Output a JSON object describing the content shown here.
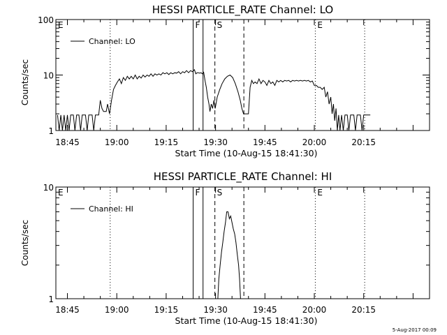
{
  "footer_stamp": "5-Aug-2017 00:09",
  "chart_data": [
    {
      "type": "line",
      "title": "HESSI PARTICLE_RATE Channel: LO",
      "xlabel": "Start Time (10-Aug-15 18:41:30)",
      "ylabel": "Counts/sec",
      "yscale": "log",
      "xlim_minutes": [
        1121.5,
        1235.0
      ],
      "ylim": [
        1,
        100
      ],
      "x_ticks": [
        {
          "t": 1125,
          "label": "18:45"
        },
        {
          "t": 1140,
          "label": "19:00"
        },
        {
          "t": 1155,
          "label": "19:15"
        },
        {
          "t": 1170,
          "label": "19:30"
        },
        {
          "t": 1185,
          "label": "19:45"
        },
        {
          "t": 1200,
          "label": "20:00"
        },
        {
          "t": 1215,
          "label": "20:15"
        }
      ],
      "y_ticks": [
        {
          "v": 1,
          "label": "1"
        },
        {
          "v": 10,
          "label": "10"
        },
        {
          "v": 100,
          "label": "100"
        }
      ],
      "legend": {
        "label": "Channel: LO",
        "placement": "top-left"
      },
      "markers": [
        {
          "label": "E",
          "t": 1121.5,
          "style": "none"
        },
        {
          "label": "",
          "t": 1138.0,
          "style": "dotted"
        },
        {
          "label": "F",
          "t": 1163.2,
          "style": "solid"
        },
        {
          "label": "",
          "t": 1166.2,
          "style": "solid"
        },
        {
          "label": "S",
          "t": 1169.8,
          "style": "dashed"
        },
        {
          "label": "",
          "t": 1178.6,
          "style": "dashed"
        },
        {
          "label": "E",
          "t": 1200.3,
          "style": "dotted"
        },
        {
          "label": "",
          "t": 1215.3,
          "style": "dotted"
        }
      ],
      "series": [
        {
          "name": "Channel: LO",
          "points": [
            [
              1122.0,
              1.9
            ],
            [
              1122.5,
              1
            ],
            [
              1123.0,
              1.9
            ],
            [
              1123.5,
              1
            ],
            [
              1124.0,
              1.9
            ],
            [
              1124.5,
              1
            ],
            [
              1125.0,
              1.9
            ],
            [
              1125.5,
              1
            ],
            [
              1126.0,
              1.9
            ],
            [
              1126.8,
              1.9
            ],
            [
              1127.3,
              1
            ],
            [
              1127.8,
              1.9
            ],
            [
              1128.5,
              1.9
            ],
            [
              1129.0,
              1
            ],
            [
              1129.5,
              1.9
            ],
            [
              1130.5,
              1.9
            ],
            [
              1131.0,
              1
            ],
            [
              1131.5,
              1.9
            ],
            [
              1132.5,
              1.9
            ],
            [
              1133.0,
              1
            ],
            [
              1133.5,
              1.9
            ],
            [
              1134.5,
              1.9
            ],
            [
              1135.0,
              3.5
            ],
            [
              1135.5,
              2.5
            ],
            [
              1136.0,
              2.2
            ],
            [
              1136.8,
              2.2
            ],
            [
              1137.2,
              3.0
            ],
            [
              1137.8,
              2.0
            ],
            [
              1138.4,
              3.5
            ],
            [
              1139.0,
              5.5
            ],
            [
              1139.6,
              6.5
            ],
            [
              1140.2,
              7.5
            ],
            [
              1140.8,
              8.5
            ],
            [
              1141.4,
              7.0
            ],
            [
              1142.0,
              9.0
            ],
            [
              1142.6,
              8.0
            ],
            [
              1143.2,
              9.5
            ],
            [
              1143.8,
              8.5
            ],
            [
              1144.4,
              9.5
            ],
            [
              1145.0,
              8.5
            ],
            [
              1145.6,
              10.0
            ],
            [
              1146.2,
              8.5
            ],
            [
              1146.8,
              9.5
            ],
            [
              1147.4,
              8.8
            ],
            [
              1148.0,
              10.0
            ],
            [
              1148.6,
              9.2
            ],
            [
              1149.2,
              10.0
            ],
            [
              1149.8,
              9.5
            ],
            [
              1150.4,
              10.5
            ],
            [
              1151.0,
              9.5
            ],
            [
              1151.6,
              10.5
            ],
            [
              1152.2,
              10.0
            ],
            [
              1152.8,
              10.5
            ],
            [
              1153.4,
              10.0
            ],
            [
              1154.0,
              11.0
            ],
            [
              1154.6,
              10.5
            ],
            [
              1155.2,
              11.0
            ],
            [
              1155.8,
              10.2
            ],
            [
              1156.4,
              11.0
            ],
            [
              1157.0,
              10.5
            ],
            [
              1157.6,
              11.0
            ],
            [
              1158.2,
              10.8
            ],
            [
              1158.8,
              11.5
            ],
            [
              1159.4,
              10.5
            ],
            [
              1160.0,
              11.5
            ],
            [
              1160.6,
              11.0
            ],
            [
              1161.2,
              12.0
            ],
            [
              1161.8,
              11.0
            ],
            [
              1162.4,
              12.0
            ],
            [
              1163.0,
              11.5
            ],
            [
              1163.6,
              12.5
            ],
            [
              1164.0,
              10.5
            ],
            [
              1164.4,
              11.0
            ],
            [
              1164.8,
              11.0
            ],
            [
              1165.2,
              10.8
            ],
            [
              1165.6,
              11.0
            ],
            [
              1166.0,
              10.5
            ],
            [
              1166.4,
              11.2
            ],
            [
              1166.8,
              8.0
            ],
            [
              1167.2,
              6.0
            ],
            [
              1167.6,
              4.0
            ],
            [
              1168.0,
              3.0
            ],
            [
              1168.3,
              2.2
            ],
            [
              1168.7,
              3.0
            ],
            [
              1169.1,
              2.5
            ],
            [
              1169.5,
              3.5
            ],
            [
              1169.9,
              2.5
            ],
            [
              1170.5,
              4.0
            ],
            [
              1171.3,
              5.5
            ],
            [
              1172.0,
              7.0
            ],
            [
              1172.8,
              8.5
            ],
            [
              1173.6,
              9.5
            ],
            [
              1174.4,
              10.0
            ],
            [
              1175.2,
              9.0
            ],
            [
              1176.0,
              7.0
            ],
            [
              1176.8,
              5.0
            ],
            [
              1177.5,
              3.5
            ],
            [
              1178.0,
              2.5
            ],
            [
              1178.5,
              2.0
            ],
            [
              1179.0,
              2.0
            ],
            [
              1179.5,
              2.0
            ],
            [
              1180.0,
              2.0
            ],
            [
              1180.5,
              6.0
            ],
            [
              1181.0,
              8.0
            ],
            [
              1181.5,
              7.0
            ],
            [
              1182.0,
              7.5
            ],
            [
              1182.6,
              7.0
            ],
            [
              1183.2,
              8.5
            ],
            [
              1183.8,
              7.0
            ],
            [
              1184.4,
              8.0
            ],
            [
              1185.0,
              7.5
            ],
            [
              1185.6,
              6.5
            ],
            [
              1186.2,
              8.0
            ],
            [
              1186.8,
              7.0
            ],
            [
              1187.4,
              7.5
            ],
            [
              1188.0,
              6.5
            ],
            [
              1188.6,
              8.0
            ],
            [
              1189.2,
              7.5
            ],
            [
              1189.8,
              8.0
            ],
            [
              1190.4,
              7.5
            ],
            [
              1191.0,
              8.0
            ],
            [
              1191.6,
              7.8
            ],
            [
              1192.2,
              8.0
            ],
            [
              1192.8,
              7.5
            ],
            [
              1193.4,
              8.0
            ],
            [
              1194.0,
              7.8
            ],
            [
              1194.6,
              8.0
            ],
            [
              1195.2,
              7.8
            ],
            [
              1195.8,
              8.0
            ],
            [
              1196.4,
              7.8
            ],
            [
              1197.0,
              8.0
            ],
            [
              1197.6,
              7.8
            ],
            [
              1198.2,
              8.0
            ],
            [
              1198.8,
              7.5
            ],
            [
              1199.4,
              7.8
            ],
            [
              1200.0,
              6.5
            ],
            [
              1200.6,
              6.5
            ],
            [
              1201.2,
              6.0
            ],
            [
              1201.8,
              6.0
            ],
            [
              1202.4,
              5.5
            ],
            [
              1203.0,
              6.0
            ],
            [
              1203.5,
              4.0
            ],
            [
              1204.0,
              5.0
            ],
            [
              1204.5,
              3.0
            ],
            [
              1205.0,
              4.0
            ],
            [
              1205.4,
              2.0
            ],
            [
              1205.8,
              3.0
            ],
            [
              1206.2,
              1.5
            ],
            [
              1206.6,
              2.5
            ],
            [
              1207.0,
              1.0
            ],
            [
              1207.4,
              1.9
            ],
            [
              1207.8,
              1.0
            ],
            [
              1208.3,
              1.9
            ],
            [
              1208.8,
              1.0
            ],
            [
              1209.3,
              1.9
            ],
            [
              1210.0,
              1.9
            ],
            [
              1210.5,
              1.0
            ],
            [
              1211.0,
              1.9
            ],
            [
              1212.0,
              1.9
            ],
            [
              1212.5,
              1.0
            ],
            [
              1213.0,
              1.9
            ],
            [
              1214.0,
              1.9
            ],
            [
              1214.5,
              1.0
            ],
            [
              1215.0,
              1.9
            ],
            [
              1216.0,
              1.9
            ],
            [
              1217.0,
              1.9
            ]
          ]
        }
      ]
    },
    {
      "type": "line",
      "title": "HESSI PARTICLE_RATE Channel: HI",
      "xlabel": "Start Time (10-Aug-15 18:41:30)",
      "ylabel": "Counts/sec",
      "yscale": "log",
      "xlim_minutes": [
        1121.5,
        1235.0
      ],
      "ylim": [
        1,
        10
      ],
      "x_ticks": [
        {
          "t": 1125,
          "label": "18:45"
        },
        {
          "t": 1140,
          "label": "19:00"
        },
        {
          "t": 1155,
          "label": "19:15"
        },
        {
          "t": 1170,
          "label": "19:30"
        },
        {
          "t": 1185,
          "label": "19:45"
        },
        {
          "t": 1200,
          "label": "20:00"
        },
        {
          "t": 1215,
          "label": "20:15"
        }
      ],
      "y_ticks": [
        {
          "v": 1,
          "label": "1"
        },
        {
          "v": 10,
          "label": "10"
        }
      ],
      "legend": {
        "label": "Channel: HI",
        "placement": "top-left"
      },
      "markers": [
        {
          "label": "E",
          "t": 1121.5,
          "style": "none"
        },
        {
          "label": "",
          "t": 1138.0,
          "style": "dotted"
        },
        {
          "label": "F",
          "t": 1163.2,
          "style": "solid"
        },
        {
          "label": "",
          "t": 1166.2,
          "style": "solid"
        },
        {
          "label": "S",
          "t": 1169.8,
          "style": "dashed"
        },
        {
          "label": "",
          "t": 1178.6,
          "style": "dashed"
        },
        {
          "label": "E",
          "t": 1200.3,
          "style": "dotted"
        },
        {
          "label": "",
          "t": 1215.3,
          "style": "dotted"
        }
      ],
      "series": [
        {
          "name": "Channel: HI",
          "points": [
            [
              1170.7,
              1.0
            ],
            [
              1171.0,
              1.5
            ],
            [
              1171.4,
              2.0
            ],
            [
              1171.8,
              2.6
            ],
            [
              1172.2,
              3.2
            ],
            [
              1172.6,
              4.0
            ],
            [
              1173.0,
              4.8
            ],
            [
              1173.4,
              6.0
            ],
            [
              1173.8,
              6.0
            ],
            [
              1174.2,
              5.2
            ],
            [
              1174.6,
              5.5
            ],
            [
              1175.0,
              4.8
            ],
            [
              1175.4,
              4.2
            ],
            [
              1175.8,
              3.8
            ],
            [
              1176.2,
              3.2
            ],
            [
              1176.6,
              2.5
            ],
            [
              1177.0,
              2.0
            ],
            [
              1177.3,
              1.5
            ],
            [
              1177.6,
              1.0
            ]
          ]
        }
      ]
    }
  ]
}
